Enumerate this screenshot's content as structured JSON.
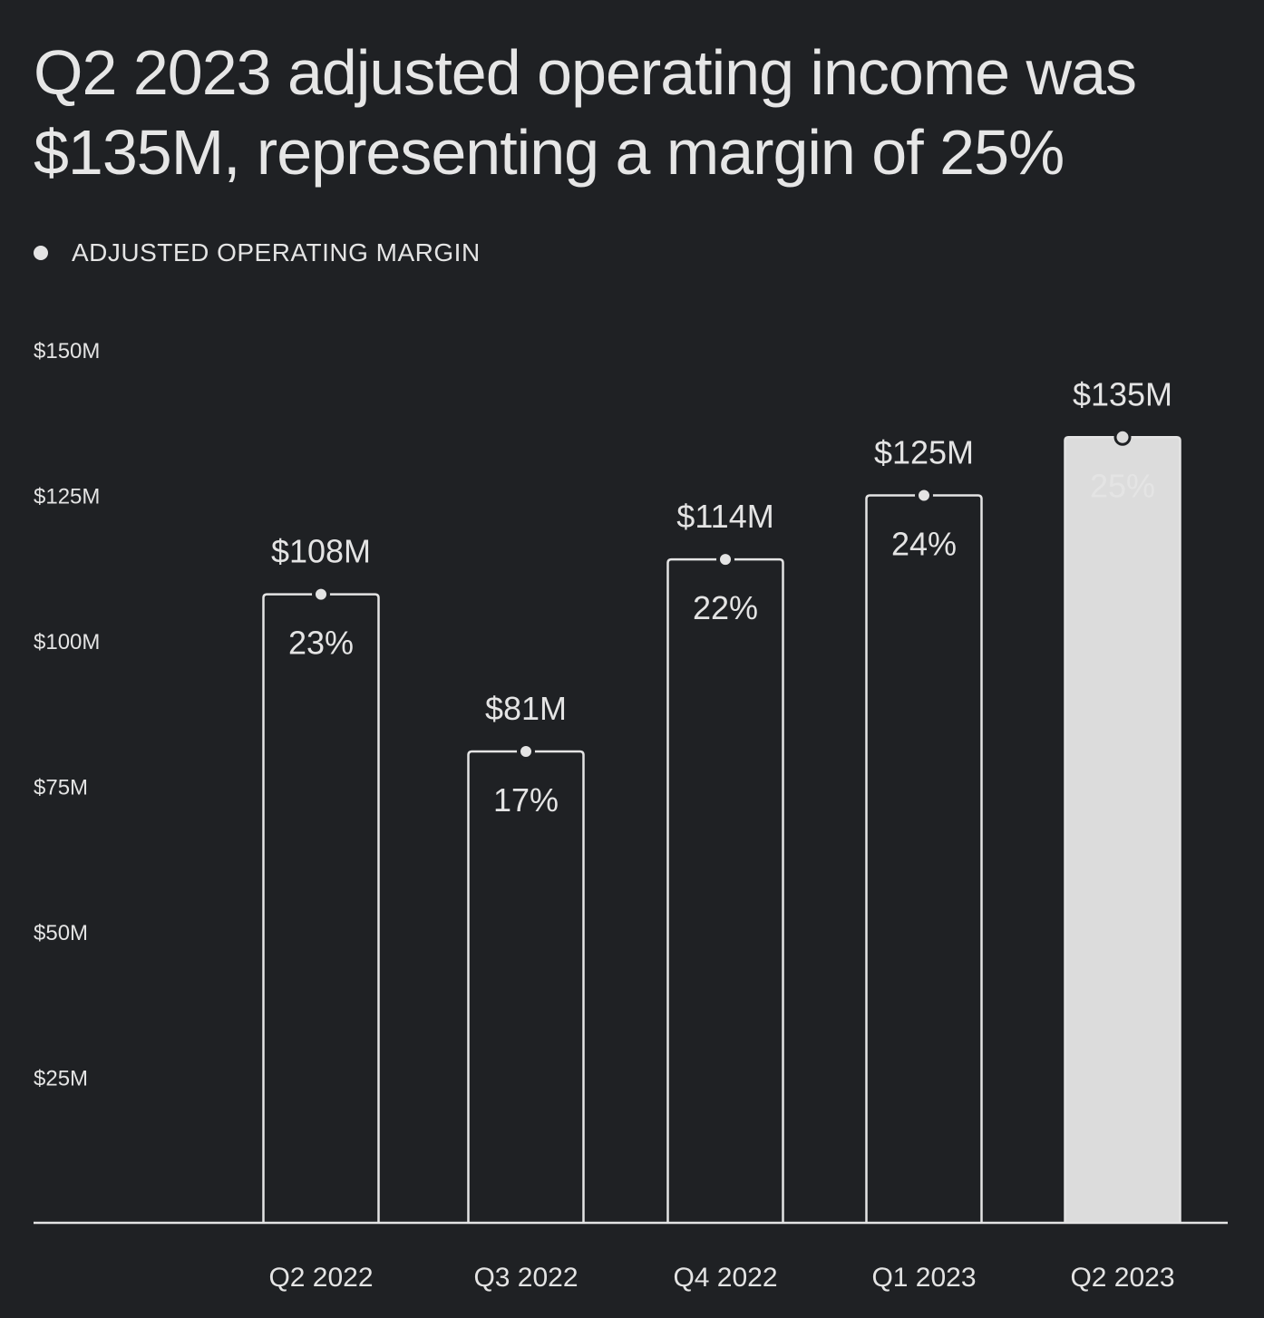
{
  "headline": "Q2 2023 adjusted operating income was $135M, representing a margin of 25%",
  "legend": {
    "label": "ADJUSTED OPERATING MARGIN",
    "marker_icon": "dot-icon"
  },
  "colors": {
    "background": "#1f2124",
    "foreground": "#e4e4e4",
    "highlight_fill": "#dcdcdc",
    "highlight_text": "#1f2124"
  },
  "chart_data": {
    "type": "bar",
    "title": "Q2 2023 adjusted operating income was $135M, representing a margin of 25%",
    "xlabel": "",
    "ylabel": "",
    "ylim": [
      0,
      150
    ],
    "y_ticks": [
      {
        "value": 25,
        "label": "$25M"
      },
      {
        "value": 50,
        "label": "$50M"
      },
      {
        "value": 75,
        "label": "$75M"
      },
      {
        "value": 100,
        "label": "$100M"
      },
      {
        "value": 125,
        "label": "$125M"
      },
      {
        "value": 150,
        "label": "$150M"
      }
    ],
    "categories": [
      "Q2 2022",
      "Q3 2022",
      "Q4 2022",
      "Q1 2023",
      "Q2 2023"
    ],
    "series": [
      {
        "name": "Adjusted operating income",
        "values": [
          108,
          81,
          114,
          125,
          135
        ],
        "value_labels": [
          "$108M",
          "$81M",
          "$114M",
          "$125M",
          "$135M"
        ]
      },
      {
        "name": "ADJUSTED OPERATING MARGIN",
        "values": [
          23,
          17,
          22,
          24,
          25
        ],
        "value_labels": [
          "23%",
          "17%",
          "22%",
          "24%",
          "25%"
        ]
      }
    ],
    "highlighted_category": "Q2 2023",
    "grid": false,
    "legend_position": "top-left"
  }
}
